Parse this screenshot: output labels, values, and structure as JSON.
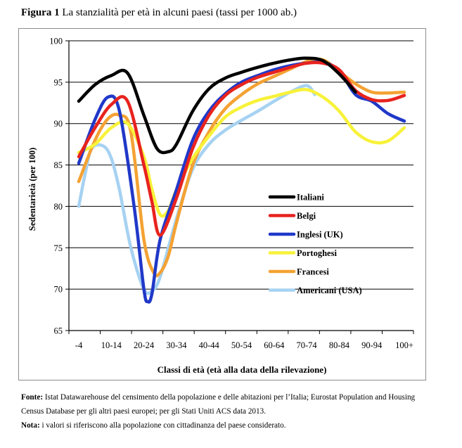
{
  "figure": {
    "label": "Figura 1",
    "caption": "La stanzialità per età in alcuni paesi (tassi per 1000 ab.)"
  },
  "notes": {
    "source_label": "Fonte:",
    "source_line1": "Istat Datawarehouse del censimento della popolazione e delle abitazioni per l’Italia; Eurostat Population and Housing",
    "source_line2": "Census Database per gli altri paesi europei; per gli Stati Uniti ACS data 2013.",
    "note_label": "Nota:",
    "note_text": "i valori si riferiscono alla popolazione con cittadinanza del paese considerato."
  },
  "chart_data": {
    "type": "line",
    "title": "",
    "xlabel": "Classi di età (età alla data della rilevazione)",
    "ylabel": "Sedentarietà (per 100)",
    "ylim": [
      65,
      100
    ],
    "yticks": [
      65,
      70,
      75,
      80,
      85,
      90,
      95,
      100
    ],
    "grid": true,
    "legend_position": "center-right",
    "categories": [
      "-4",
      "10-14",
      "20-24",
      "30-34",
      "40-44",
      "50-54",
      "60-64",
      "70-74",
      "80-84",
      "90-94",
      "100+"
    ],
    "x_positions": [
      0,
      1,
      2,
      3,
      4,
      5,
      6,
      7,
      8,
      9,
      10
    ],
    "series": [
      {
        "name": "Italiani",
        "color": "#000000",
        "x": [
          0,
          0.5,
          1,
          1.5,
          2,
          2.4,
          2.75,
          3,
          3.5,
          4,
          4.5,
          5,
          5.5,
          6,
          6.5,
          7,
          7.5,
          8,
          8.5
        ],
        "values": [
          92.7,
          94.7,
          95.8,
          96.1,
          91.0,
          87.0,
          86.6,
          87.5,
          91.5,
          94.2,
          95.5,
          96.2,
          96.8,
          97.3,
          97.7,
          97.9,
          97.6,
          96.0,
          93.8
        ]
      },
      {
        "name": "Belgi",
        "color": "#e8231e",
        "x": [
          0,
          0.5,
          1,
          1.5,
          2,
          2.25,
          2.5,
          3,
          3.5,
          4,
          4.5,
          5,
          5.5,
          6,
          6.5,
          7,
          7.5,
          8,
          8.5,
          9,
          9.5,
          10
        ],
        "values": [
          86.0,
          89.5,
          92.3,
          92.7,
          85.0,
          80.5,
          76.5,
          81.0,
          87.0,
          91.0,
          93.4,
          94.7,
          95.6,
          96.2,
          96.8,
          97.3,
          97.3,
          96.5,
          94.0,
          92.9,
          92.8,
          93.4
        ]
      },
      {
        "name": "Inglesi (UK)",
        "color": "#2038c8",
        "x": [
          0,
          0.5,
          0.9,
          1.25,
          1.7,
          2.0,
          2.12,
          2.25,
          2.5,
          3,
          3.5,
          4,
          4.5,
          5,
          5.5,
          6,
          6.5,
          7,
          7.5,
          8,
          8.5,
          9,
          9.5,
          10
        ],
        "values": [
          85.2,
          90.5,
          93.2,
          91.5,
          80.0,
          70.0,
          68.5,
          69.5,
          76.0,
          82.0,
          88.0,
          91.5,
          93.6,
          95.0,
          95.8,
          96.5,
          97.0,
          97.3,
          97.4,
          96.4,
          93.5,
          92.7,
          91.2,
          90.3
        ]
      },
      {
        "name": "Portoghesi",
        "color": "#f8f23a",
        "x": [
          0,
          0.5,
          1,
          1.5,
          2,
          2.25,
          2.5,
          2.75,
          3,
          3.5,
          4,
          4.5,
          5,
          5.5,
          6,
          6.5,
          7,
          7.5,
          8,
          8.5,
          9,
          9.5,
          10
        ],
        "values": [
          86.5,
          87.5,
          89.5,
          90.0,
          86.0,
          82.0,
          79.0,
          79.5,
          82.0,
          85.8,
          88.5,
          90.8,
          92.0,
          92.8,
          93.3,
          93.8,
          94.1,
          93.2,
          91.5,
          89.0,
          87.8,
          87.9,
          89.5
        ]
      },
      {
        "name": "Francesi",
        "color": "#f4a234",
        "x": [
          0,
          0.5,
          0.9,
          1.25,
          1.6,
          2.0,
          2.3,
          2.5,
          2.75,
          3,
          3.5,
          4,
          4.5,
          5,
          5.5,
          6,
          6.5,
          7,
          7.5,
          8,
          8.5,
          9,
          9.5,
          10
        ],
        "values": [
          83.0,
          88.0,
          90.6,
          91.0,
          89.0,
          76.0,
          72.0,
          72.0,
          74.0,
          78.0,
          85.0,
          89.0,
          91.8,
          93.5,
          94.8,
          95.7,
          96.6,
          97.5,
          97.7,
          96.3,
          94.8,
          93.8,
          93.7,
          93.8
        ]
      },
      {
        "name": "Americani (USA)",
        "color": "#a6d2f2",
        "x": [
          0,
          0.2,
          0.4,
          0.75,
          1.0,
          1.25,
          1.6,
          2.0,
          2.25,
          2.5,
          3,
          3.5,
          4,
          4.5,
          5,
          5.5,
          6,
          6.5,
          7,
          7.25
        ],
        "values": [
          80.0,
          84.0,
          87.0,
          87.3,
          85.8,
          82.0,
          75.0,
          70.0,
          69.8,
          71.5,
          78.5,
          84.5,
          87.5,
          89.2,
          90.4,
          91.5,
          92.7,
          93.8,
          94.6,
          93.5
        ]
      }
    ]
  }
}
